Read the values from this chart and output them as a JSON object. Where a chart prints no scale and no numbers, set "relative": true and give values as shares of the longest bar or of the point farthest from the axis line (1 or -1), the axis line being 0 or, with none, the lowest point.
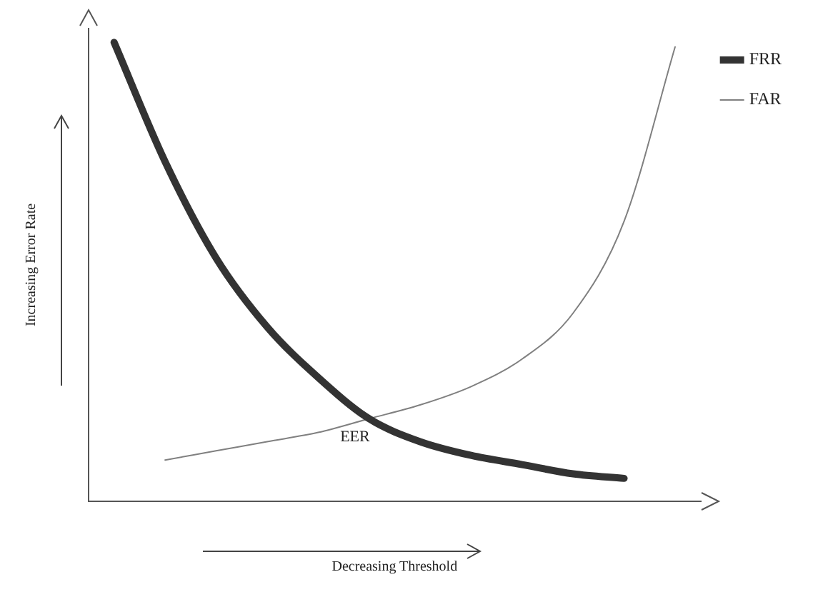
{
  "chart_data": {
    "type": "line",
    "relative": true,
    "xlabel": "Decreasing Threshold",
    "ylabel": "Increasing Error Rate",
    "categories": [
      null,
      null,
      null,
      null,
      null,
      null,
      null,
      null,
      null,
      null,
      null,
      null
    ],
    "series": [
      {
        "name": "FRR",
        "color": "#333333",
        "values": [
          1.0,
          0.74,
          0.53,
          0.38,
          0.27,
          0.18,
          0.13,
          0.1,
          0.08,
          0.06,
          0.05,
          null
        ]
      },
      {
        "name": "FAR",
        "color": "#808080",
        "values": [
          null,
          0.09,
          0.11,
          0.13,
          0.15,
          0.18,
          0.21,
          0.25,
          0.31,
          0.41,
          0.61,
          0.99
        ]
      }
    ],
    "legend": "top right",
    "grid": false,
    "marker": "none",
    "line_style": "solid",
    "annotations": [
      "EER"
    ]
  }
}
